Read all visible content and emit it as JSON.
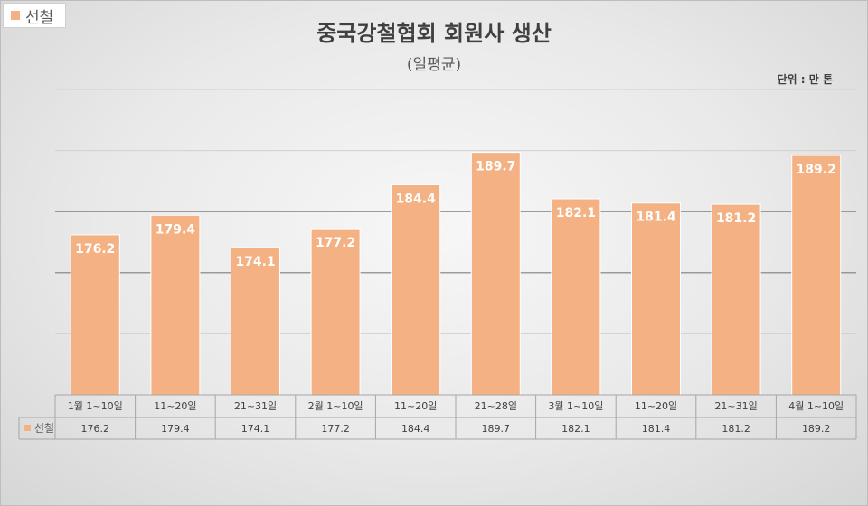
{
  "chart_data": {
    "type": "bar",
    "title": "중국강철협회 회원사 생산",
    "subtitle": "(일평균)",
    "unit": "단위 : 만 톤",
    "categories": [
      "1월 1~10일",
      "11~20일",
      "21~31일",
      "2월 1~10일",
      "11~20일",
      "21~28일",
      "3월 1~10일",
      "11~20일",
      "21~31일",
      "4월 1~10일"
    ],
    "series": [
      {
        "name": "선철",
        "color": "#f4b183",
        "values": [
          176.2,
          179.4,
          174.1,
          177.2,
          184.4,
          189.7,
          182.1,
          181.4,
          181.2,
          189.2
        ]
      }
    ],
    "value_labels": [
      "176.2",
      "179.4",
      "174.1",
      "177.2",
      "184.4",
      "189.7",
      "182.1",
      "181.4",
      "181.2",
      "189.2"
    ],
    "ylim": [
      150,
      200
    ],
    "gridlines": true,
    "legend": "top-left",
    "data_table": true
  }
}
